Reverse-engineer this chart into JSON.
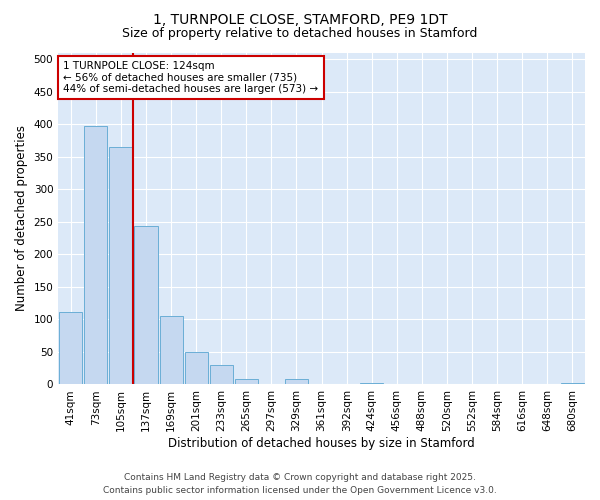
{
  "title1": "1, TURNPOLE CLOSE, STAMFORD, PE9 1DT",
  "title2": "Size of property relative to detached houses in Stamford",
  "xlabel": "Distribution of detached houses by size in Stamford",
  "ylabel": "Number of detached properties",
  "categories": [
    "41sqm",
    "73sqm",
    "105sqm",
    "137sqm",
    "169sqm",
    "201sqm",
    "233sqm",
    "265sqm",
    "297sqm",
    "329sqm",
    "361sqm",
    "392sqm",
    "424sqm",
    "456sqm",
    "488sqm",
    "520sqm",
    "552sqm",
    "584sqm",
    "616sqm",
    "648sqm",
    "680sqm"
  ],
  "values": [
    112,
    397,
    365,
    243,
    105,
    50,
    30,
    8,
    0,
    8,
    0,
    0,
    3,
    0,
    0,
    0,
    0,
    0,
    0,
    0,
    3
  ],
  "bar_color": "#c5d8f0",
  "bar_edge_color": "#6aaed6",
  "vline_x": 2.5,
  "vline_color": "#cc0000",
  "annotation_text": "1 TURNPOLE CLOSE: 124sqm\n← 56% of detached houses are smaller (735)\n44% of semi-detached houses are larger (573) →",
  "annotation_box_facecolor": "#ffffff",
  "annotation_box_edgecolor": "#cc0000",
  "footer1": "Contains HM Land Registry data © Crown copyright and database right 2025.",
  "footer2": "Contains public sector information licensed under the Open Government Licence v3.0.",
  "ylim": [
    0,
    510
  ],
  "yticks": [
    0,
    50,
    100,
    150,
    200,
    250,
    300,
    350,
    400,
    450,
    500
  ],
  "bg_color": "#dce9f8",
  "fig_color": "#ffffff",
  "grid_color": "#ffffff",
  "title_fontsize": 10,
  "subtitle_fontsize": 9,
  "axis_label_fontsize": 8.5,
  "tick_fontsize": 7.5,
  "annotation_fontsize": 7.5,
  "footer_fontsize": 6.5
}
